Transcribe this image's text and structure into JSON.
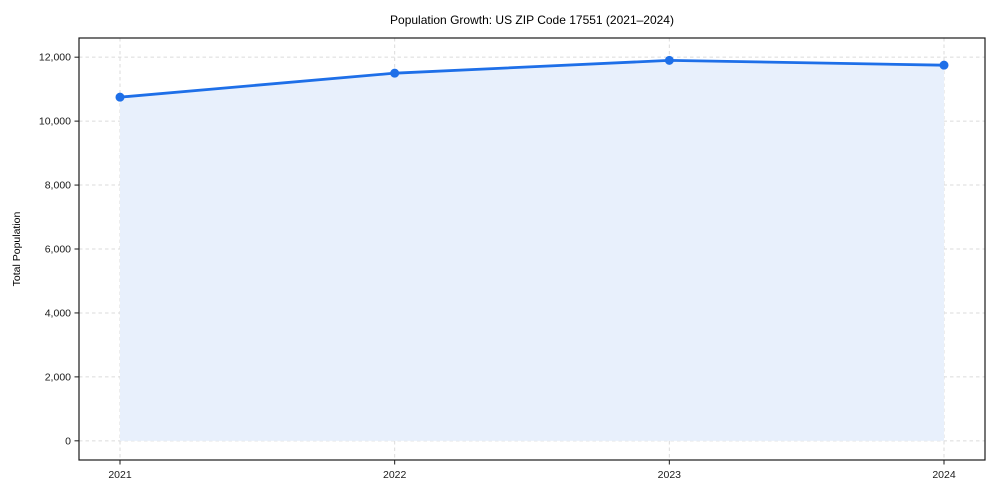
{
  "chart_data": {
    "type": "area",
    "title": "Population Growth: US ZIP Code 17551 (2021–2024)",
    "xlabel": "",
    "ylabel": "Total Population",
    "categories": [
      "2021",
      "2022",
      "2023",
      "2024"
    ],
    "series": [
      {
        "name": "Total Population",
        "values": [
          10750,
          11500,
          11900,
          11750
        ]
      }
    ],
    "ylim": [
      -600,
      12600
    ],
    "yticks": [
      0,
      2000,
      4000,
      6000,
      8000,
      10000,
      12000
    ],
    "ytick_labels": [
      "0",
      "2,000",
      "4,000",
      "6,000",
      "8,000",
      "10,000",
      "12,000"
    ],
    "grid": true,
    "grid_style": "dashed",
    "legend": false,
    "colors": {
      "line": "#1E6FE8",
      "marker": "#1E6FE8",
      "fill": "#E8F0FC",
      "grid": "#DBDBDB",
      "spine": "#1a1a1a",
      "tick_label": "#1a1a1a",
      "background": "#ffffff"
    }
  }
}
